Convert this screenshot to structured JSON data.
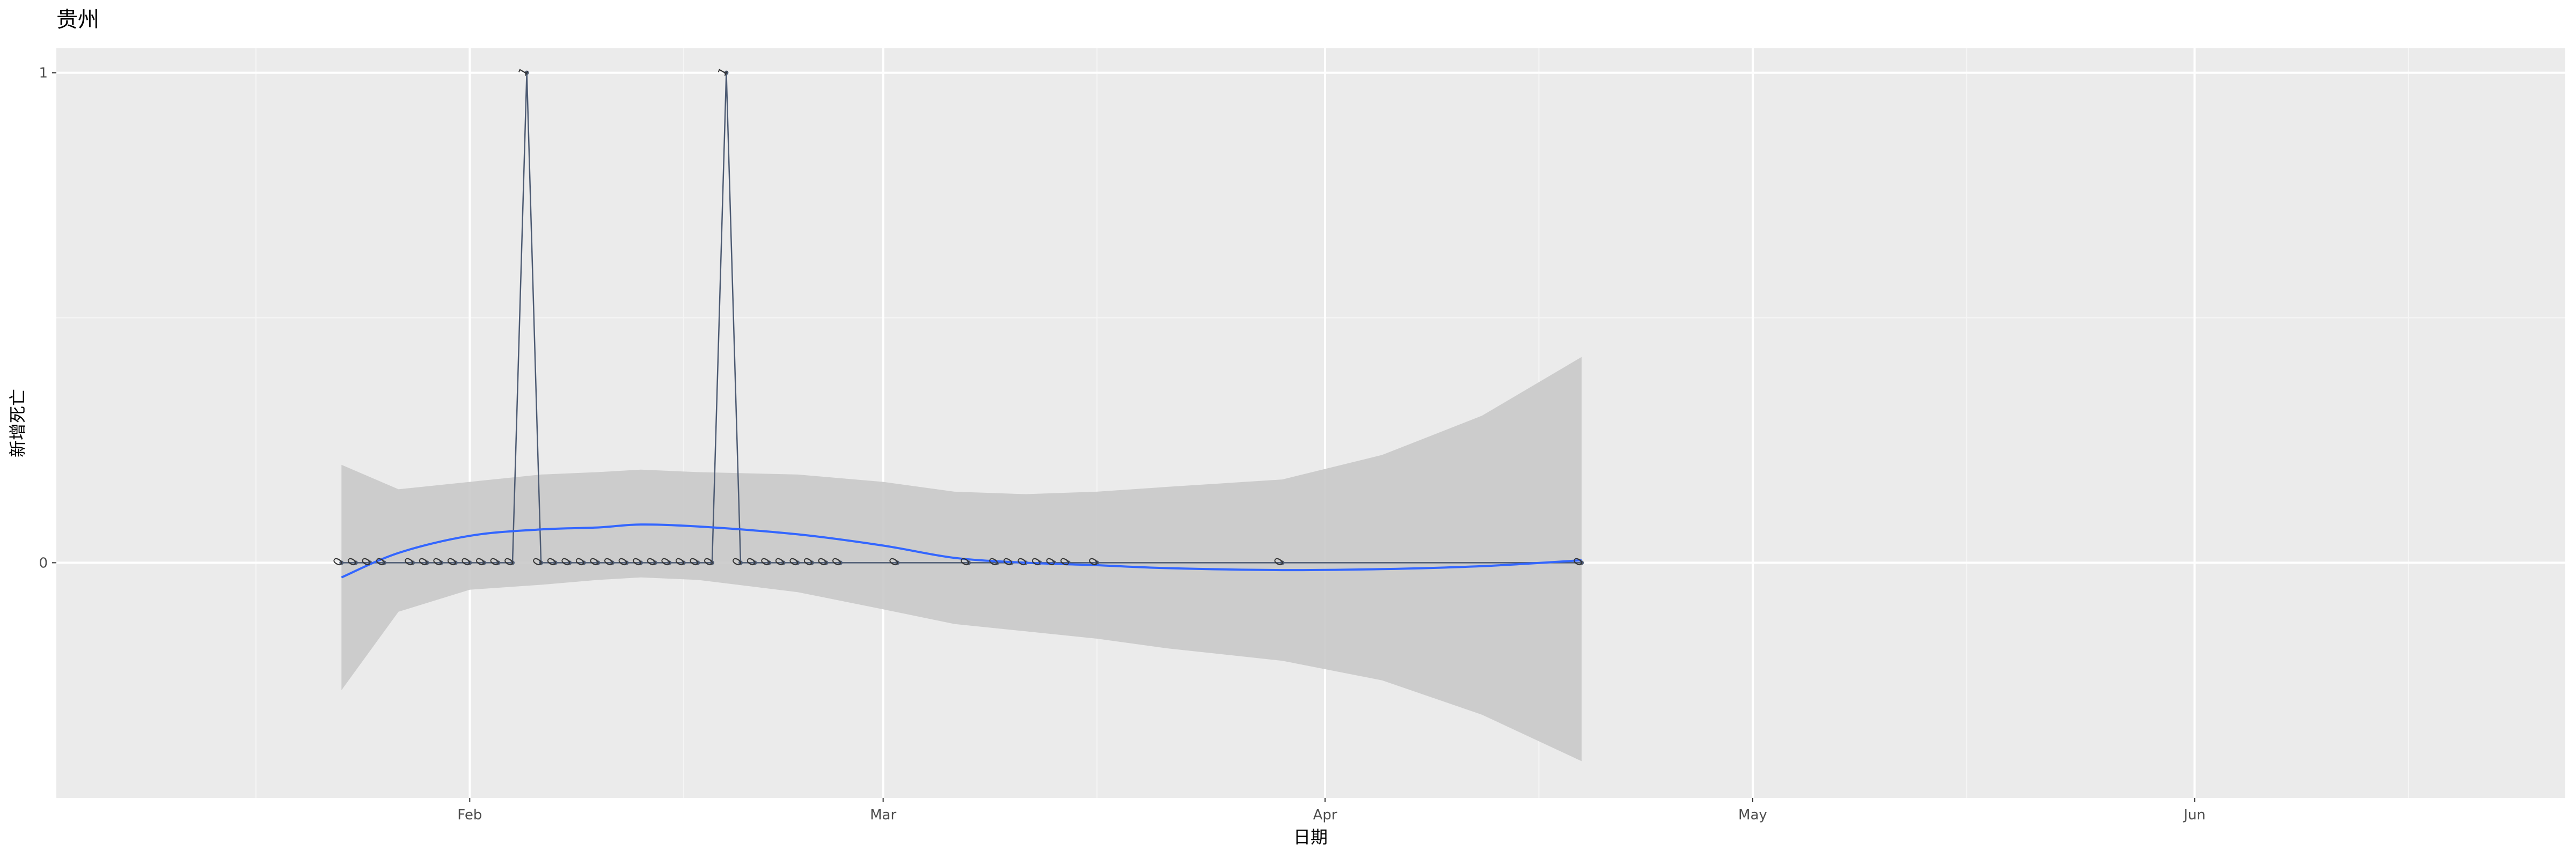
{
  "chart_data": {
    "type": "line",
    "title": "贵州",
    "xlabel": "日期",
    "ylabel": "新增死亡",
    "x_ticks": [
      {
        "date": "2020-02-01",
        "label": "Feb"
      },
      {
        "date": "2020-03-01",
        "label": "Mar"
      },
      {
        "date": "2020-04-01",
        "label": "Apr"
      },
      {
        "date": "2020-05-01",
        "label": "May"
      },
      {
        "date": "2020-06-01",
        "label": "Jun"
      }
    ],
    "x_minor_ticks": [
      "2020-01-17",
      "2020-02-16",
      "2020-03-16",
      "2020-04-16",
      "2020-05-16",
      "2020-06-16"
    ],
    "y_ticks": [
      {
        "value": 0,
        "label": "0"
      },
      {
        "value": 1,
        "label": "1"
      }
    ],
    "xlim": [
      "2020-01-03",
      "2020-06-27"
    ],
    "ylim": [
      -0.48,
      1.05
    ],
    "grid": true,
    "series": [
      {
        "kind": "observed",
        "color": "#4d5b73",
        "points": [
          {
            "x": "2020-01-23",
            "y": 0
          },
          {
            "x": "2020-01-24",
            "y": 0
          },
          {
            "x": "2020-01-25",
            "y": 0
          },
          {
            "x": "2020-01-26",
            "y": 0
          },
          {
            "x": "2020-01-28",
            "y": 0
          },
          {
            "x": "2020-01-29",
            "y": 0
          },
          {
            "x": "2020-01-30",
            "y": 0
          },
          {
            "x": "2020-01-31",
            "y": 0
          },
          {
            "x": "2020-02-01",
            "y": 0
          },
          {
            "x": "2020-02-02",
            "y": 0
          },
          {
            "x": "2020-02-03",
            "y": 0
          },
          {
            "x": "2020-02-04",
            "y": 0
          },
          {
            "x": "2020-02-05",
            "y": 1
          },
          {
            "x": "2020-02-06",
            "y": 0
          },
          {
            "x": "2020-02-07",
            "y": 0
          },
          {
            "x": "2020-02-08",
            "y": 0
          },
          {
            "x": "2020-02-09",
            "y": 0
          },
          {
            "x": "2020-02-10",
            "y": 0
          },
          {
            "x": "2020-02-11",
            "y": 0
          },
          {
            "x": "2020-02-12",
            "y": 0
          },
          {
            "x": "2020-02-13",
            "y": 0
          },
          {
            "x": "2020-02-14",
            "y": 0
          },
          {
            "x": "2020-02-15",
            "y": 0
          },
          {
            "x": "2020-02-16",
            "y": 0
          },
          {
            "x": "2020-02-17",
            "y": 0
          },
          {
            "x": "2020-02-18",
            "y": 0
          },
          {
            "x": "2020-02-19",
            "y": 1
          },
          {
            "x": "2020-02-20",
            "y": 0
          },
          {
            "x": "2020-02-21",
            "y": 0
          },
          {
            "x": "2020-02-22",
            "y": 0
          },
          {
            "x": "2020-02-23",
            "y": 0
          },
          {
            "x": "2020-02-24",
            "y": 0
          },
          {
            "x": "2020-02-25",
            "y": 0
          },
          {
            "x": "2020-02-26",
            "y": 0
          },
          {
            "x": "2020-02-27",
            "y": 0
          },
          {
            "x": "2020-03-02",
            "y": 0
          },
          {
            "x": "2020-03-07",
            "y": 0
          },
          {
            "x": "2020-03-09",
            "y": 0
          },
          {
            "x": "2020-03-10",
            "y": 0
          },
          {
            "x": "2020-03-11",
            "y": 0
          },
          {
            "x": "2020-03-12",
            "y": 0
          },
          {
            "x": "2020-03-13",
            "y": 0
          },
          {
            "x": "2020-03-14",
            "y": 0
          },
          {
            "x": "2020-03-16",
            "y": 0
          },
          {
            "x": "2020-03-29",
            "y": 0
          },
          {
            "x": "2020-04-19",
            "y": 0
          }
        ]
      },
      {
        "kind": "smooth",
        "color": "#3366ff",
        "points": [
          {
            "x": "2020-01-23",
            "y": -0.03
          },
          {
            "x": "2020-01-27",
            "y": 0.02
          },
          {
            "x": "2020-02-01",
            "y": 0.055
          },
          {
            "x": "2020-02-06",
            "y": 0.068
          },
          {
            "x": "2020-02-10",
            "y": 0.072
          },
          {
            "x": "2020-02-13",
            "y": 0.078
          },
          {
            "x": "2020-02-17",
            "y": 0.074
          },
          {
            "x": "2020-02-24",
            "y": 0.058
          },
          {
            "x": "2020-03-01",
            "y": 0.035
          },
          {
            "x": "2020-03-06",
            "y": 0.01
          },
          {
            "x": "2020-03-11",
            "y": 0.0
          },
          {
            "x": "2020-03-16",
            "y": -0.005
          },
          {
            "x": "2020-03-21",
            "y": -0.011
          },
          {
            "x": "2020-03-29",
            "y": -0.015
          },
          {
            "x": "2020-04-05",
            "y": -0.013
          },
          {
            "x": "2020-04-12",
            "y": -0.007
          },
          {
            "x": "2020-04-19",
            "y": 0.005
          }
        ]
      }
    ],
    "confidence_band": {
      "color": "#c9c9c9",
      "points": [
        {
          "x": "2020-01-23",
          "lo": -0.26,
          "hi": 0.2
        },
        {
          "x": "2020-01-27",
          "lo": -0.1,
          "hi": 0.15
        },
        {
          "x": "2020-02-01",
          "lo": -0.055,
          "hi": 0.165
        },
        {
          "x": "2020-02-06",
          "lo": -0.045,
          "hi": 0.18
        },
        {
          "x": "2020-02-10",
          "lo": -0.035,
          "hi": 0.185
        },
        {
          "x": "2020-02-13",
          "lo": -0.03,
          "hi": 0.19
        },
        {
          "x": "2020-02-17",
          "lo": -0.035,
          "hi": 0.185
        },
        {
          "x": "2020-02-24",
          "lo": -0.06,
          "hi": 0.18
        },
        {
          "x": "2020-03-01",
          "lo": -0.095,
          "hi": 0.165
        },
        {
          "x": "2020-03-06",
          "lo": -0.125,
          "hi": 0.145
        },
        {
          "x": "2020-03-11",
          "lo": -0.14,
          "hi": 0.14
        },
        {
          "x": "2020-03-16",
          "lo": -0.155,
          "hi": 0.145
        },
        {
          "x": "2020-03-21",
          "lo": -0.175,
          "hi": 0.155
        },
        {
          "x": "2020-03-29",
          "lo": -0.2,
          "hi": 0.17
        },
        {
          "x": "2020-04-05",
          "lo": -0.24,
          "hi": 0.22
        },
        {
          "x": "2020-04-12",
          "lo": -0.31,
          "hi": 0.3
        },
        {
          "x": "2020-04-19",
          "lo": -0.405,
          "hi": 0.42
        }
      ]
    }
  }
}
